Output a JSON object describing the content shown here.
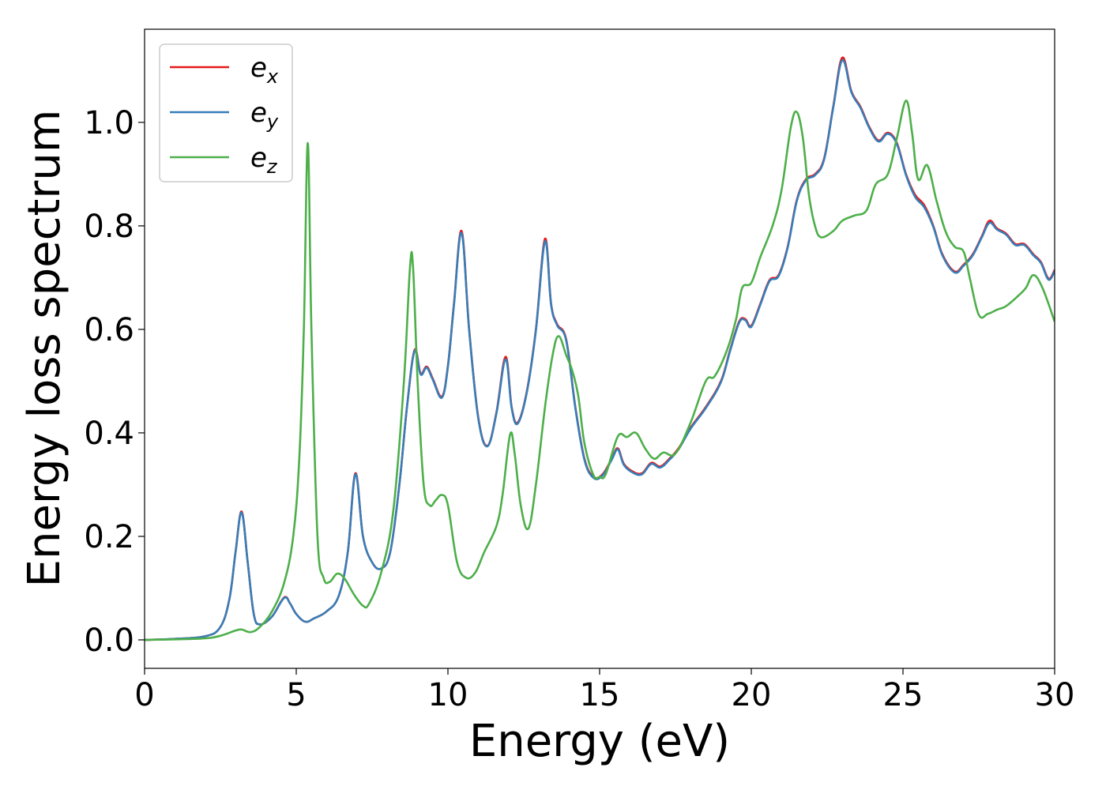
{
  "chart_data": {
    "type": "line",
    "title": "",
    "xlabel": "Energy (eV)",
    "ylabel": "Energy loss spectrum",
    "xlim": [
      0,
      30
    ],
    "ylim": [
      -0.055,
      1.18
    ],
    "xticks": [
      0,
      5,
      10,
      15,
      20,
      25,
      30
    ],
    "yticks": [
      0.0,
      0.2,
      0.4,
      0.6,
      0.8,
      1.0
    ],
    "grid": false,
    "legend_position": "top-left",
    "series": [
      {
        "name": "e",
        "subscript": "x",
        "color": "#e41a1c",
        "points": [
          [
            0,
            0
          ],
          [
            1,
            0.002
          ],
          [
            2,
            0.007
          ],
          [
            2.5,
            0.025
          ],
          [
            2.8,
            0.08
          ],
          [
            3.0,
            0.17
          ],
          [
            3.2,
            0.248
          ],
          [
            3.4,
            0.15
          ],
          [
            3.6,
            0.05
          ],
          [
            3.8,
            0.03
          ],
          [
            4.2,
            0.045
          ],
          [
            4.6,
            0.082
          ],
          [
            4.8,
            0.07
          ],
          [
            5.0,
            0.05
          ],
          [
            5.3,
            0.035
          ],
          [
            5.6,
            0.042
          ],
          [
            6.0,
            0.055
          ],
          [
            6.4,
            0.085
          ],
          [
            6.7,
            0.17
          ],
          [
            6.95,
            0.322
          ],
          [
            7.2,
            0.2
          ],
          [
            7.5,
            0.15
          ],
          [
            7.8,
            0.138
          ],
          [
            8.1,
            0.17
          ],
          [
            8.4,
            0.3
          ],
          [
            8.65,
            0.45
          ],
          [
            8.9,
            0.56
          ],
          [
            9.1,
            0.515
          ],
          [
            9.3,
            0.528
          ],
          [
            9.5,
            0.505
          ],
          [
            9.8,
            0.47
          ],
          [
            10.0,
            0.53
          ],
          [
            10.2,
            0.65
          ],
          [
            10.45,
            0.79
          ],
          [
            10.7,
            0.6
          ],
          [
            11.0,
            0.43
          ],
          [
            11.3,
            0.375
          ],
          [
            11.6,
            0.44
          ],
          [
            11.9,
            0.547
          ],
          [
            12.1,
            0.45
          ],
          [
            12.3,
            0.42
          ],
          [
            12.6,
            0.48
          ],
          [
            12.9,
            0.6
          ],
          [
            13.2,
            0.775
          ],
          [
            13.4,
            0.65
          ],
          [
            13.6,
            0.61
          ],
          [
            13.9,
            0.58
          ],
          [
            14.2,
            0.45
          ],
          [
            14.5,
            0.35
          ],
          [
            14.8,
            0.315
          ],
          [
            15.1,
            0.32
          ],
          [
            15.4,
            0.35
          ],
          [
            15.6,
            0.37
          ],
          [
            15.8,
            0.34
          ],
          [
            16.1,
            0.325
          ],
          [
            16.4,
            0.322
          ],
          [
            16.7,
            0.342
          ],
          [
            17.0,
            0.335
          ],
          [
            17.3,
            0.35
          ],
          [
            17.6,
            0.37
          ],
          [
            18.0,
            0.41
          ],
          [
            18.5,
            0.45
          ],
          [
            19.0,
            0.5
          ],
          [
            19.3,
            0.56
          ],
          [
            19.6,
            0.615
          ],
          [
            19.8,
            0.62
          ],
          [
            20.0,
            0.607
          ],
          [
            20.3,
            0.65
          ],
          [
            20.6,
            0.695
          ],
          [
            20.9,
            0.705
          ],
          [
            21.2,
            0.76
          ],
          [
            21.5,
            0.85
          ],
          [
            21.8,
            0.89
          ],
          [
            22.1,
            0.9
          ],
          [
            22.4,
            0.93
          ],
          [
            22.7,
            1.03
          ],
          [
            23.0,
            1.125
          ],
          [
            23.3,
            1.06
          ],
          [
            23.6,
            1.03
          ],
          [
            23.9,
            0.99
          ],
          [
            24.2,
            0.965
          ],
          [
            24.5,
            0.98
          ],
          [
            24.8,
            0.96
          ],
          [
            25.1,
            0.9
          ],
          [
            25.4,
            0.86
          ],
          [
            25.7,
            0.84
          ],
          [
            26.0,
            0.8
          ],
          [
            26.3,
            0.745
          ],
          [
            26.7,
            0.712
          ],
          [
            27.0,
            0.725
          ],
          [
            27.3,
            0.745
          ],
          [
            27.6,
            0.78
          ],
          [
            27.85,
            0.81
          ],
          [
            28.1,
            0.795
          ],
          [
            28.4,
            0.785
          ],
          [
            28.7,
            0.765
          ],
          [
            29.0,
            0.765
          ],
          [
            29.3,
            0.745
          ],
          [
            29.55,
            0.73
          ],
          [
            29.8,
            0.698
          ],
          [
            30.0,
            0.715
          ]
        ]
      },
      {
        "name": "e",
        "subscript": "y",
        "color": "#377eb8",
        "points": [
          [
            0,
            0
          ],
          [
            1,
            0.002
          ],
          [
            2,
            0.007
          ],
          [
            2.5,
            0.025
          ],
          [
            2.8,
            0.08
          ],
          [
            3.0,
            0.17
          ],
          [
            3.2,
            0.246
          ],
          [
            3.4,
            0.15
          ],
          [
            3.6,
            0.05
          ],
          [
            3.8,
            0.03
          ],
          [
            4.2,
            0.045
          ],
          [
            4.6,
            0.081
          ],
          [
            4.8,
            0.07
          ],
          [
            5.0,
            0.05
          ],
          [
            5.3,
            0.035
          ],
          [
            5.6,
            0.042
          ],
          [
            6.0,
            0.055
          ],
          [
            6.4,
            0.085
          ],
          [
            6.7,
            0.17
          ],
          [
            6.95,
            0.32
          ],
          [
            7.2,
            0.2
          ],
          [
            7.5,
            0.15
          ],
          [
            7.8,
            0.138
          ],
          [
            8.1,
            0.17
          ],
          [
            8.4,
            0.3
          ],
          [
            8.65,
            0.45
          ],
          [
            8.9,
            0.558
          ],
          [
            9.1,
            0.513
          ],
          [
            9.3,
            0.526
          ],
          [
            9.5,
            0.503
          ],
          [
            9.8,
            0.468
          ],
          [
            10.0,
            0.528
          ],
          [
            10.2,
            0.648
          ],
          [
            10.45,
            0.786
          ],
          [
            10.7,
            0.598
          ],
          [
            11.0,
            0.428
          ],
          [
            11.3,
            0.374
          ],
          [
            11.6,
            0.438
          ],
          [
            11.9,
            0.542
          ],
          [
            12.1,
            0.448
          ],
          [
            12.3,
            0.418
          ],
          [
            12.6,
            0.478
          ],
          [
            12.9,
            0.598
          ],
          [
            13.2,
            0.77
          ],
          [
            13.4,
            0.648
          ],
          [
            13.6,
            0.608
          ],
          [
            13.9,
            0.578
          ],
          [
            14.2,
            0.448
          ],
          [
            14.5,
            0.348
          ],
          [
            14.8,
            0.313
          ],
          [
            15.1,
            0.318
          ],
          [
            15.4,
            0.348
          ],
          [
            15.6,
            0.368
          ],
          [
            15.8,
            0.338
          ],
          [
            16.1,
            0.323
          ],
          [
            16.4,
            0.32
          ],
          [
            16.7,
            0.34
          ],
          [
            17.0,
            0.333
          ],
          [
            17.3,
            0.348
          ],
          [
            17.6,
            0.368
          ],
          [
            18.0,
            0.408
          ],
          [
            18.5,
            0.448
          ],
          [
            19.0,
            0.498
          ],
          [
            19.3,
            0.558
          ],
          [
            19.6,
            0.613
          ],
          [
            19.8,
            0.618
          ],
          [
            20.0,
            0.605
          ],
          [
            20.3,
            0.648
          ],
          [
            20.6,
            0.693
          ],
          [
            20.9,
            0.703
          ],
          [
            21.2,
            0.758
          ],
          [
            21.5,
            0.848
          ],
          [
            21.8,
            0.888
          ],
          [
            22.1,
            0.898
          ],
          [
            22.4,
            0.928
          ],
          [
            22.7,
            1.028
          ],
          [
            23.0,
            1.12
          ],
          [
            23.3,
            1.058
          ],
          [
            23.6,
            1.028
          ],
          [
            23.9,
            0.988
          ],
          [
            24.2,
            0.963
          ],
          [
            24.5,
            0.978
          ],
          [
            24.8,
            0.958
          ],
          [
            25.1,
            0.898
          ],
          [
            25.4,
            0.856
          ],
          [
            25.7,
            0.836
          ],
          [
            26.0,
            0.798
          ],
          [
            26.3,
            0.743
          ],
          [
            26.7,
            0.71
          ],
          [
            27.0,
            0.723
          ],
          [
            27.3,
            0.743
          ],
          [
            27.6,
            0.778
          ],
          [
            27.85,
            0.806
          ],
          [
            28.1,
            0.793
          ],
          [
            28.4,
            0.783
          ],
          [
            28.7,
            0.763
          ],
          [
            29.0,
            0.763
          ],
          [
            29.3,
            0.743
          ],
          [
            29.55,
            0.728
          ],
          [
            29.8,
            0.696
          ],
          [
            30.0,
            0.713
          ]
        ]
      },
      {
        "name": "e",
        "subscript": "z",
        "color": "#4daf4a",
        "points": [
          [
            0,
            0
          ],
          [
            1,
            0.001
          ],
          [
            2,
            0.003
          ],
          [
            2.5,
            0.008
          ],
          [
            3.0,
            0.018
          ],
          [
            3.2,
            0.02
          ],
          [
            3.5,
            0.015
          ],
          [
            3.8,
            0.025
          ],
          [
            4.2,
            0.055
          ],
          [
            4.6,
            0.11
          ],
          [
            4.9,
            0.2
          ],
          [
            5.1,
            0.35
          ],
          [
            5.25,
            0.6
          ],
          [
            5.38,
            0.96
          ],
          [
            5.5,
            0.6
          ],
          [
            5.7,
            0.2
          ],
          [
            5.9,
            0.12
          ],
          [
            6.1,
            0.112
          ],
          [
            6.35,
            0.128
          ],
          [
            6.6,
            0.118
          ],
          [
            6.9,
            0.088
          ],
          [
            7.2,
            0.066
          ],
          [
            7.4,
            0.07
          ],
          [
            7.8,
            0.13
          ],
          [
            8.2,
            0.25
          ],
          [
            8.55,
            0.5
          ],
          [
            8.75,
            0.72
          ],
          [
            8.85,
            0.72
          ],
          [
            9.0,
            0.5
          ],
          [
            9.2,
            0.3
          ],
          [
            9.4,
            0.26
          ],
          [
            9.6,
            0.27
          ],
          [
            9.8,
            0.28
          ],
          [
            10.0,
            0.26
          ],
          [
            10.3,
            0.15
          ],
          [
            10.6,
            0.12
          ],
          [
            10.9,
            0.13
          ],
          [
            11.2,
            0.17
          ],
          [
            11.6,
            0.22
          ],
          [
            11.8,
            0.28
          ],
          [
            12.05,
            0.397
          ],
          [
            12.2,
            0.36
          ],
          [
            12.4,
            0.26
          ],
          [
            12.65,
            0.215
          ],
          [
            12.9,
            0.3
          ],
          [
            13.2,
            0.45
          ],
          [
            13.45,
            0.55
          ],
          [
            13.65,
            0.587
          ],
          [
            13.9,
            0.55
          ],
          [
            14.1,
            0.52
          ],
          [
            14.3,
            0.47
          ],
          [
            14.5,
            0.38
          ],
          [
            14.8,
            0.318
          ],
          [
            15.0,
            0.315
          ],
          [
            15.2,
            0.32
          ],
          [
            15.6,
            0.393
          ],
          [
            15.9,
            0.392
          ],
          [
            16.2,
            0.4
          ],
          [
            16.5,
            0.37
          ],
          [
            16.8,
            0.35
          ],
          [
            17.1,
            0.362
          ],
          [
            17.5,
            0.36
          ],
          [
            18.0,
            0.42
          ],
          [
            18.5,
            0.5
          ],
          [
            18.8,
            0.51
          ],
          [
            19.2,
            0.56
          ],
          [
            19.5,
            0.62
          ],
          [
            19.7,
            0.68
          ],
          [
            20.0,
            0.69
          ],
          [
            20.3,
            0.74
          ],
          [
            20.7,
            0.8
          ],
          [
            21.0,
            0.87
          ],
          [
            21.3,
            0.99
          ],
          [
            21.5,
            1.02
          ],
          [
            21.7,
            0.97
          ],
          [
            21.9,
            0.86
          ],
          [
            22.1,
            0.8
          ],
          [
            22.3,
            0.778
          ],
          [
            22.7,
            0.79
          ],
          [
            23.0,
            0.81
          ],
          [
            23.4,
            0.82
          ],
          [
            23.8,
            0.83
          ],
          [
            24.1,
            0.88
          ],
          [
            24.5,
            0.9
          ],
          [
            24.8,
            0.97
          ],
          [
            25.1,
            1.042
          ],
          [
            25.3,
            0.98
          ],
          [
            25.5,
            0.89
          ],
          [
            25.8,
            0.917
          ],
          [
            26.1,
            0.85
          ],
          [
            26.4,
            0.79
          ],
          [
            26.7,
            0.76
          ],
          [
            27.0,
            0.75
          ],
          [
            27.2,
            0.7
          ],
          [
            27.5,
            0.628
          ],
          [
            27.8,
            0.63
          ],
          [
            28.1,
            0.638
          ],
          [
            28.4,
            0.645
          ],
          [
            28.8,
            0.665
          ],
          [
            29.05,
            0.68
          ],
          [
            29.3,
            0.705
          ],
          [
            29.6,
            0.68
          ],
          [
            30.0,
            0.615
          ]
        ]
      }
    ]
  }
}
